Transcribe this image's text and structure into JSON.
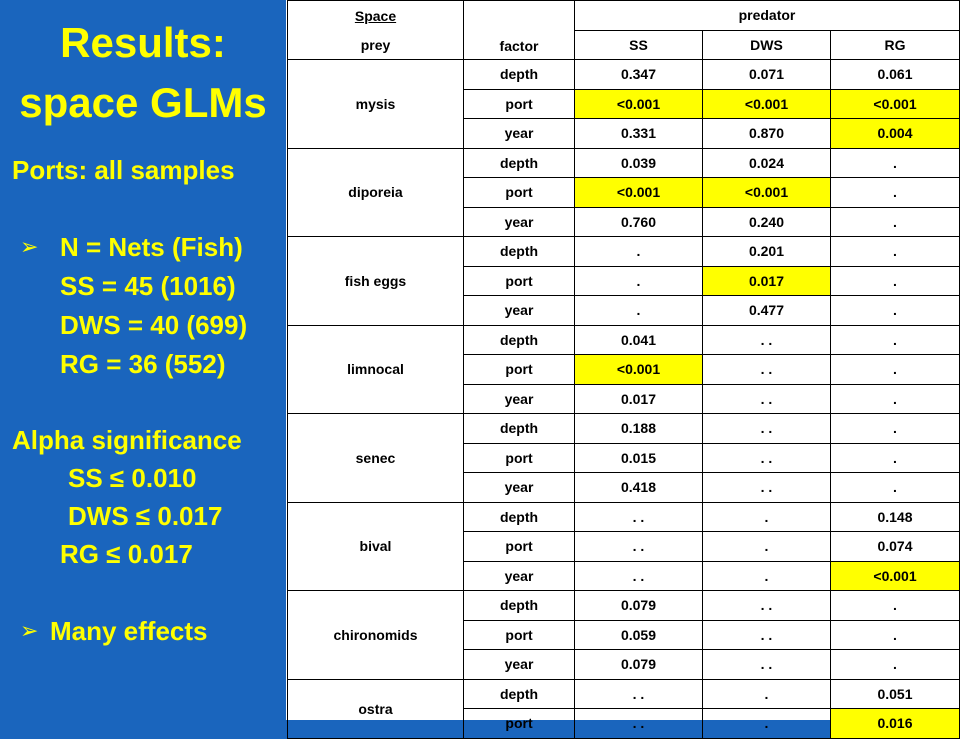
{
  "left": {
    "title_line1": "Results:",
    "title_line2": "space GLMs",
    "ports_heading": "Ports: all samples",
    "n_label": "N = Nets (Fish)",
    "ss_n": "SS = 45 (1016)",
    "dws_n": "DWS = 40 (699)",
    "rg_n": "RG = 36 (552)",
    "alpha_heading": "Alpha significance",
    "ss_alpha": "SS  ≤ 0.010",
    "dws_alpha": "DWS ≤ 0.017",
    "rg_alpha": "RG ≤ 0.017",
    "many_effects": "Many effects",
    "bullet_glyph": "➢"
  },
  "table": {
    "header": {
      "space": "Space",
      "prey": "prey",
      "factor": "factor",
      "predator": "predator",
      "predators": [
        "SS",
        "DWS",
        "RG"
      ]
    },
    "highlight_color": "#ffff00",
    "groups": [
      {
        "prey": "mysis",
        "rows": [
          {
            "factor": "depth",
            "values": [
              "0.347",
              "0.071",
              "0.061"
            ],
            "highlight": [
              false,
              false,
              false
            ]
          },
          {
            "factor": "port",
            "values": [
              "<0.001",
              "<0.001",
              "<0.001"
            ],
            "highlight": [
              true,
              true,
              true
            ]
          },
          {
            "factor": "year",
            "values": [
              "0.331",
              "0.870",
              "0.004"
            ],
            "highlight": [
              false,
              false,
              true
            ]
          }
        ]
      },
      {
        "prey": "diporeia",
        "rows": [
          {
            "factor": "depth",
            "values": [
              "0.039",
              "0.024",
              "."
            ],
            "highlight": [
              false,
              false,
              false
            ]
          },
          {
            "factor": "port",
            "values": [
              "<0.001",
              "<0.001",
              "."
            ],
            "highlight": [
              true,
              true,
              false
            ]
          },
          {
            "factor": "year",
            "values": [
              "0.760",
              "0.240",
              "."
            ],
            "highlight": [
              false,
              false,
              false
            ]
          }
        ]
      },
      {
        "prey": "fish eggs",
        "rows": [
          {
            "factor": "depth",
            "values": [
              ".",
              "0.201",
              "."
            ],
            "highlight": [
              false,
              false,
              false
            ]
          },
          {
            "factor": "port",
            "values": [
              ".",
              "0.017",
              "."
            ],
            "highlight": [
              false,
              true,
              false
            ]
          },
          {
            "factor": "year",
            "values": [
              ".",
              "0.477",
              "."
            ],
            "highlight": [
              false,
              false,
              false
            ]
          }
        ]
      },
      {
        "prey": "limnocal",
        "rows": [
          {
            "factor": "depth",
            "values": [
              "0.041",
              ". .",
              "."
            ],
            "highlight": [
              false,
              false,
              false
            ]
          },
          {
            "factor": "port",
            "values": [
              "<0.001",
              ". .",
              "."
            ],
            "highlight": [
              true,
              false,
              false
            ]
          },
          {
            "factor": "year",
            "values": [
              "0.017",
              ". .",
              "."
            ],
            "highlight": [
              false,
              false,
              false
            ]
          }
        ]
      },
      {
        "prey": "senec",
        "rows": [
          {
            "factor": "depth",
            "values": [
              "0.188",
              ". .",
              "."
            ],
            "highlight": [
              false,
              false,
              false
            ]
          },
          {
            "factor": "port",
            "values": [
              "0.015",
              ". .",
              "."
            ],
            "highlight": [
              false,
              false,
              false
            ]
          },
          {
            "factor": "year",
            "values": [
              "0.418",
              ". .",
              "."
            ],
            "highlight": [
              false,
              false,
              false
            ]
          }
        ]
      },
      {
        "prey": "bival",
        "rows": [
          {
            "factor": "depth",
            "values": [
              ". .",
              ".",
              "0.148"
            ],
            "highlight": [
              false,
              false,
              false
            ]
          },
          {
            "factor": "port",
            "values": [
              ". .",
              ".",
              "0.074"
            ],
            "highlight": [
              false,
              false,
              false
            ]
          },
          {
            "factor": "year",
            "values": [
              ". .",
              ".",
              "<0.001"
            ],
            "highlight": [
              false,
              false,
              true
            ]
          }
        ]
      },
      {
        "prey": "chironomids",
        "rows": [
          {
            "factor": "depth",
            "values": [
              "0.079",
              ". .",
              "."
            ],
            "highlight": [
              false,
              false,
              false
            ]
          },
          {
            "factor": "port",
            "values": [
              "0.059",
              ". .",
              "."
            ],
            "highlight": [
              false,
              false,
              false
            ]
          },
          {
            "factor": "year",
            "values": [
              "0.079",
              ". .",
              "."
            ],
            "highlight": [
              false,
              false,
              false
            ]
          }
        ]
      },
      {
        "prey": "ostra",
        "rows": [
          {
            "factor": "depth",
            "values": [
              ". .",
              ".",
              "0.051"
            ],
            "highlight": [
              false,
              false,
              false
            ]
          },
          {
            "factor": "port",
            "values": [
              ". .",
              ".",
              "0.016"
            ],
            "highlight": [
              false,
              false,
              true
            ]
          }
        ]
      }
    ]
  }
}
